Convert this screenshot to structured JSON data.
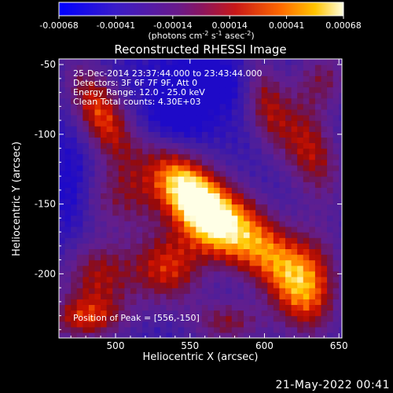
{
  "chart_data": {
    "type": "heatmap",
    "title": "Reconstructed RHESSI Image",
    "xlabel": "Heliocentric X (arcsec)",
    "ylabel": "Heliocentric Y (arcsec)",
    "xlim": [
      462,
      652
    ],
    "ylim": [
      -246,
      -46
    ],
    "xticks": [
      500,
      550,
      600,
      650
    ],
    "yticks": [
      -50,
      -100,
      -150,
      -200
    ],
    "colorbar": {
      "min": -0.00068,
      "max": 0.00068,
      "ticks": [
        "-0.00068",
        "-0.00041",
        "-0.00014",
        "0.00014",
        "0.00041",
        "0.00068"
      ],
      "label_base": "(photons cm",
      "label_exp1": "-2",
      "label_mid": " s",
      "label_exp2": "-1",
      "label_mid2": " asec",
      "label_exp3": "-2",
      "label_end": ")"
    },
    "annotations": [
      "25-Dec-2014 23:37:44.000 to 23:43:44.000",
      "Detectors: 3F 6F 7F 9F, Att 0",
      "Energy Range: 12.0 - 25.0 keV",
      "Clean    Total counts: 4.30E+03"
    ],
    "peak_label": "Position of Peak = [556,-150]",
    "peak": [
      556,
      -150
    ],
    "features": [
      {
        "x": 556,
        "y": -150,
        "sigma_x": 14,
        "sigma_y": 32,
        "angle_deg": 35,
        "amp": 1.0
      },
      {
        "x": 536,
        "y": -195,
        "sigma_x": 18,
        "sigma_y": 20,
        "angle_deg": 0,
        "amp": 0.55
      },
      {
        "x": 490,
        "y": -85,
        "sigma_x": 12,
        "sigma_y": 28,
        "angle_deg": 25,
        "amp": 0.6
      },
      {
        "x": 505,
        "y": -145,
        "sigma_x": 22,
        "sigma_y": 18,
        "angle_deg": 0,
        "amp": 0.35
      },
      {
        "x": 488,
        "y": -200,
        "sigma_x": 18,
        "sigma_y": 18,
        "angle_deg": 0,
        "amp": 0.45
      },
      {
        "x": 480,
        "y": -232,
        "sigma_x": 20,
        "sigma_y": 12,
        "angle_deg": 0,
        "amp": 0.5
      },
      {
        "x": 600,
        "y": -180,
        "sigma_x": 14,
        "sigma_y": 35,
        "angle_deg": 30,
        "amp": 0.55
      },
      {
        "x": 630,
        "y": -205,
        "sigma_x": 16,
        "sigma_y": 28,
        "angle_deg": 0,
        "amp": 0.55
      },
      {
        "x": 630,
        "y": -110,
        "sigma_x": 14,
        "sigma_y": 28,
        "angle_deg": 20,
        "amp": 0.5
      },
      {
        "x": 640,
        "y": -60,
        "sigma_x": 14,
        "sigma_y": 16,
        "angle_deg": 0,
        "amp": 0.35
      },
      {
        "x": 600,
        "y": -75,
        "sigma_x": 10,
        "sigma_y": 25,
        "angle_deg": 10,
        "amp": 0.4
      },
      {
        "x": 575,
        "y": -235,
        "sigma_x": 18,
        "sigma_y": 12,
        "angle_deg": 0,
        "amp": 0.4
      },
      {
        "x": 540,
        "y": -90,
        "sigma_x": 16,
        "sigma_y": 14,
        "angle_deg": 0,
        "amp": -0.25
      },
      {
        "x": 560,
        "y": -62,
        "sigma_x": 22,
        "sigma_y": 14,
        "angle_deg": 0,
        "amp": -0.25
      },
      {
        "x": 470,
        "y": -140,
        "sigma_x": 10,
        "sigma_y": 25,
        "angle_deg": 0,
        "amp": -0.2
      }
    ]
  },
  "footer": {
    "date_stamp": "21-May-2022 00:41"
  }
}
